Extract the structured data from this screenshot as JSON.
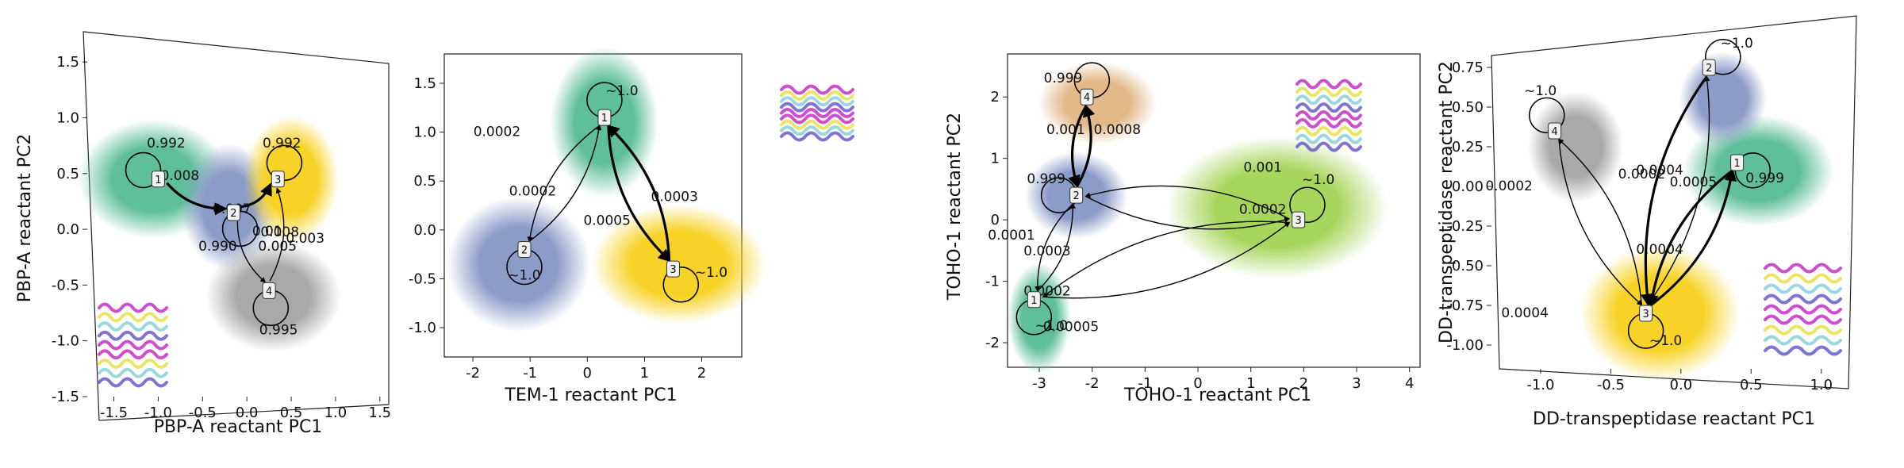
{
  "colors": {
    "teal": "#5fbf9a",
    "blue": "#8c9cc8",
    "yellow": "#f7d327",
    "gray": "#a9a9a9",
    "tan": "#e3b98a",
    "lime": "#a6d65b"
  },
  "chart_data": [
    {
      "type": "scatter",
      "subtype": "state-transition-network",
      "xlabel": "PBP-A reactant PC1",
      "ylabel": "PBP-A reactant PC2",
      "xticks": [
        "-1.5",
        "-1.0",
        "-0.5",
        "0.0",
        "0.5",
        "1.0",
        "1.5"
      ],
      "yticks": [
        "-1.5",
        "-1.0",
        "-0.5",
        "0.0",
        "0.5",
        "1.0",
        "1.5"
      ],
      "xlim": [
        -1.8,
        1.6
      ],
      "ylim": [
        -1.5,
        1.7
      ],
      "clusters": [
        {
          "id": "1",
          "color": "teal",
          "x": -1.05,
          "y": 0.45
        },
        {
          "id": "2",
          "color": "blue",
          "x": -0.2,
          "y": 0.2
        },
        {
          "id": "3",
          "color": "yellow",
          "x": 0.5,
          "y": 0.45
        },
        {
          "id": "4",
          "color": "gray",
          "x": 0.3,
          "y": -0.6
        }
      ],
      "nodes": [
        {
          "id": "1",
          "x": -1.0,
          "y": 0.45
        },
        {
          "id": "2",
          "x": -0.15,
          "y": 0.15
        },
        {
          "id": "3",
          "x": 0.35,
          "y": 0.45
        },
        {
          "id": "4",
          "x": 0.25,
          "y": -0.55
        }
      ],
      "self_loops": [
        {
          "node": "1",
          "label": "0.992"
        },
        {
          "node": "2",
          "label": "0.990"
        },
        {
          "node": "3",
          "label": "0.992"
        },
        {
          "node": "4",
          "label": "0.995"
        }
      ],
      "edge_labels": [
        "0.008",
        "0.007",
        "0.01",
        "0.008",
        "0.005",
        "0.003"
      ]
    },
    {
      "type": "scatter",
      "subtype": "state-transition-network",
      "xlabel": "TEM-1 reactant PC1",
      "ylabel": "",
      "xticks": [
        "-2",
        "-1",
        "0",
        "1",
        "2"
      ],
      "yticks": [
        "-1.0",
        "-0.5",
        "0.0",
        "0.5",
        "1.0",
        "1.5"
      ],
      "xlim": [
        -2.5,
        2.7
      ],
      "ylim": [
        -1.3,
        1.8
      ],
      "clusters": [
        {
          "id": "1",
          "color": "teal",
          "x": 0.3,
          "y": 1.1
        },
        {
          "id": "2",
          "color": "blue",
          "x": -1.2,
          "y": -0.35
        },
        {
          "id": "3",
          "color": "yellow",
          "x": 1.6,
          "y": -0.35
        }
      ],
      "nodes": [
        {
          "id": "1",
          "x": 0.3,
          "y": 1.15
        },
        {
          "id": "2",
          "x": -1.1,
          "y": -0.2
        },
        {
          "id": "3",
          "x": 1.5,
          "y": -0.4
        }
      ],
      "self_loops": [
        {
          "node": "1",
          "label": "~1.0"
        },
        {
          "node": "2",
          "label": "~1.0"
        },
        {
          "node": "3",
          "label": "~1.0"
        }
      ],
      "edge_labels": [
        "0.0002",
        "0.0002",
        "0.0003",
        "0.0005"
      ]
    },
    {
      "type": "scatter",
      "subtype": "state-transition-network",
      "xlabel": "TOHO-1 reactant PC1",
      "ylabel": "TOHO-1 reactant PC2",
      "xticks": [
        "-3",
        "-2",
        "-1",
        "0",
        "1",
        "2",
        "3",
        "4"
      ],
      "yticks": [
        "-2",
        "-1",
        "0",
        "1",
        "2"
      ],
      "xlim": [
        -3.6,
        4.2
      ],
      "ylim": [
        -2.4,
        2.7
      ],
      "clusters": [
        {
          "id": "1",
          "color": "teal",
          "x": -3.0,
          "y": -1.6
        },
        {
          "id": "2",
          "color": "blue",
          "x": -2.3,
          "y": 0.4
        },
        {
          "id": "3",
          "color": "lime",
          "x": 1.5,
          "y": 0.2
        },
        {
          "id": "4",
          "color": "tan",
          "x": -1.9,
          "y": 1.9
        }
      ],
      "nodes": [
        {
          "id": "1",
          "x": -3.1,
          "y": -1.3
        },
        {
          "id": "2",
          "x": -2.3,
          "y": 0.4
        },
        {
          "id": "3",
          "x": 1.9,
          "y": 0.0
        },
        {
          "id": "4",
          "x": -2.1,
          "y": 2.0
        }
      ],
      "self_loops": [
        {
          "node": "1",
          "label": "~1.0"
        },
        {
          "node": "2",
          "label": "0.999"
        },
        {
          "node": "3",
          "label": "~1.0"
        },
        {
          "node": "4",
          "label": "0.999"
        }
      ],
      "edge_labels": [
        "0.001",
        "0.0008",
        "0.001",
        "0.0002",
        "0.0001",
        "0.0003",
        "0.0002",
        "0.00005"
      ]
    },
    {
      "type": "scatter",
      "subtype": "state-transition-network",
      "xlabel": "DD-transpeptidase reactant PC1",
      "ylabel": "DD-transpeptidase reactant PC2",
      "xticks": [
        "-1.0",
        "-0.5",
        "0.0",
        "0.5",
        "1.0"
      ],
      "yticks": [
        "-1.00",
        "-0.75",
        "-0.50",
        "-0.25",
        "0.00",
        "0.25",
        "0.50",
        "0.75"
      ],
      "xlim": [
        -1.35,
        1.25
      ],
      "ylim": [
        -1.15,
        0.9
      ],
      "clusters": [
        {
          "id": "1",
          "color": "teal",
          "x": 0.55,
          "y": 0.1
        },
        {
          "id": "2",
          "color": "blue",
          "x": 0.3,
          "y": 0.55
        },
        {
          "id": "3",
          "color": "yellow",
          "x": -0.15,
          "y": -0.8
        },
        {
          "id": "4",
          "color": "gray",
          "x": -0.75,
          "y": 0.25
        }
      ],
      "nodes": [
        {
          "id": "1",
          "x": 0.4,
          "y": 0.15
        },
        {
          "id": "2",
          "x": 0.2,
          "y": 0.75
        },
        {
          "id": "3",
          "x": -0.25,
          "y": -0.8
        },
        {
          "id": "4",
          "x": -0.9,
          "y": 0.35
        }
      ],
      "self_loops": [
        {
          "node": "1",
          "label": "0.999"
        },
        {
          "node": "2",
          "label": "~1.0"
        },
        {
          "node": "3",
          "label": "~1.0"
        },
        {
          "node": "4",
          "label": "~1.0"
        }
      ],
      "edge_labels": [
        "0.0002",
        "0.0005",
        "0.0004",
        "0.0004",
        "0.0004",
        "0.0002"
      ]
    }
  ]
}
